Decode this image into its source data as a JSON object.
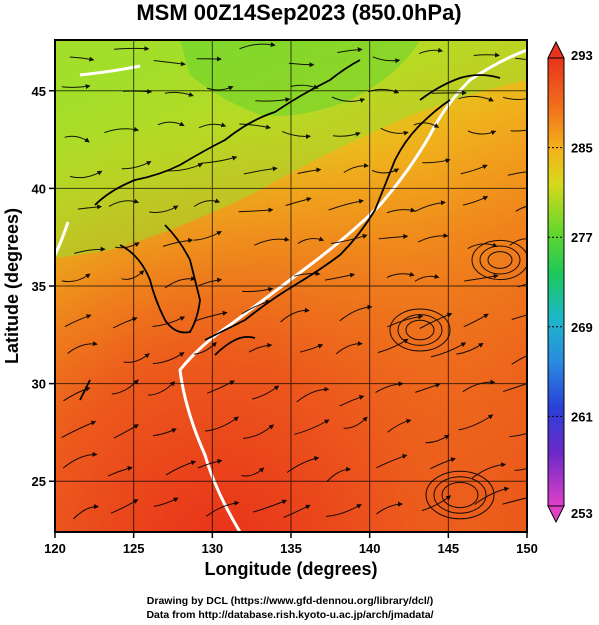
{
  "chart_data": {
    "type": "heatmap",
    "title": "MSM 00Z14Sep2023 (850.0hPa)",
    "xlabel": "Longitude (degrees)",
    "ylabel": "Latitude  (degrees)",
    "xlim": [
      120,
      150
    ],
    "ylim": [
      22.4,
      47.6
    ],
    "x_ticks": [
      "120",
      "125",
      "130",
      "135",
      "140",
      "145",
      "150"
    ],
    "y_ticks": [
      "25",
      "30",
      "35",
      "40",
      "45"
    ],
    "x_tick_values": [
      120,
      125,
      130,
      135,
      140,
      145,
      150
    ],
    "y_tick_values": [
      25,
      30,
      35,
      40,
      45
    ],
    "grid": true,
    "overlay": "streamlines",
    "colorbar": {
      "ticks": [
        "293",
        "285",
        "277",
        "269",
        "261",
        "253"
      ],
      "tick_values": [
        293,
        285,
        277,
        269,
        261,
        253
      ],
      "range": [
        253,
        293
      ],
      "position": "right"
    },
    "colors": {
      "warm": "#e8331c",
      "mid": "#f09a1c",
      "cool": "#b8e02a",
      "coldest": "#e040c8"
    }
  },
  "footer": {
    "line1": "Drawing by DCL (https://www.gfd-dennou.org/library/dcl/)",
    "line2": "Data from http://database.rish.kyoto-u.ac.jp/arch/jmadata/"
  }
}
